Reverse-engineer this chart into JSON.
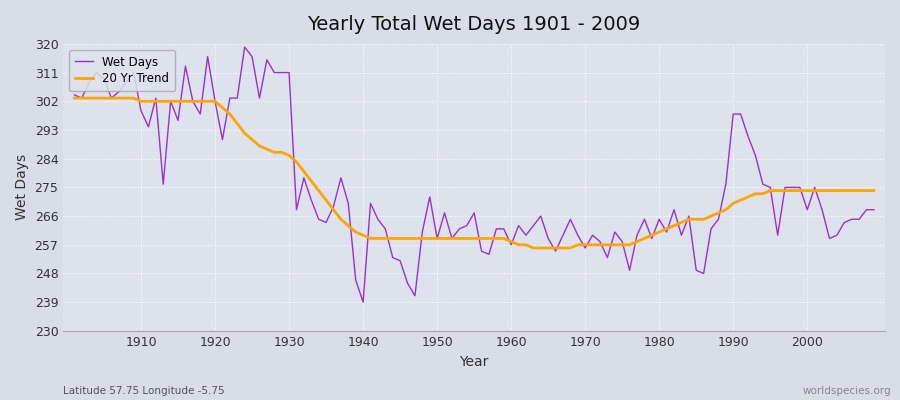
{
  "title": "Yearly Total Wet Days 1901 - 2009",
  "xlabel": "Year",
  "ylabel": "Wet Days",
  "subtitle": "Latitude 57.75 Longitude -5.75",
  "watermark": "worldspecies.org",
  "ylim": [
    230,
    320
  ],
  "yticks": [
    230,
    239,
    248,
    257,
    266,
    275,
    284,
    293,
    302,
    311,
    320
  ],
  "xticks": [
    1910,
    1920,
    1930,
    1940,
    1950,
    1960,
    1970,
    1980,
    1990,
    2000
  ],
  "bg_color": "#d8dde8",
  "plot_bg_color": "#dde2ec",
  "wet_days_color": "#9932CC",
  "trend_color": "#FFA500",
  "years": [
    1901,
    1902,
    1903,
    1904,
    1905,
    1906,
    1907,
    1908,
    1909,
    1910,
    1911,
    1912,
    1913,
    1914,
    1915,
    1916,
    1917,
    1918,
    1919,
    1920,
    1921,
    1922,
    1923,
    1924,
    1925,
    1926,
    1927,
    1928,
    1929,
    1930,
    1931,
    1932,
    1933,
    1934,
    1935,
    1936,
    1937,
    1938,
    1939,
    1940,
    1941,
    1942,
    1943,
    1944,
    1945,
    1946,
    1947,
    1948,
    1949,
    1950,
    1951,
    1952,
    1953,
    1954,
    1955,
    1956,
    1957,
    1958,
    1959,
    1960,
    1961,
    1962,
    1963,
    1964,
    1965,
    1966,
    1967,
    1968,
    1969,
    1970,
    1971,
    1972,
    1973,
    1974,
    1975,
    1976,
    1977,
    1978,
    1979,
    1980,
    1981,
    1982,
    1983,
    1984,
    1985,
    1986,
    1987,
    1988,
    1989,
    1990,
    1991,
    1992,
    1993,
    1994,
    1995,
    1996,
    1997,
    1998,
    1999,
    2000,
    2001,
    2002,
    2003,
    2004,
    2005,
    2006,
    2007,
    2008,
    2009
  ],
  "wet_days": [
    304,
    303,
    308,
    311,
    309,
    303,
    305,
    308,
    311,
    299,
    294,
    303,
    276,
    302,
    296,
    313,
    302,
    298,
    316,
    302,
    290,
    303,
    303,
    319,
    316,
    303,
    315,
    311,
    311,
    311,
    268,
    278,
    271,
    265,
    264,
    269,
    278,
    270,
    246,
    239,
    270,
    265,
    262,
    253,
    252,
    245,
    241,
    261,
    272,
    259,
    267,
    259,
    262,
    263,
    267,
    255,
    254,
    262,
    262,
    257,
    263,
    260,
    263,
    266,
    259,
    255,
    260,
    265,
    260,
    256,
    260,
    258,
    253,
    261,
    258,
    249,
    260,
    265,
    259,
    265,
    261,
    268,
    260,
    266,
    249,
    248,
    262,
    265,
    276,
    298,
    298,
    291,
    285,
    276,
    275,
    260,
    275,
    275,
    275,
    268,
    275,
    268,
    259,
    260,
    264,
    265,
    265,
    268,
    268
  ],
  "trend": [
    303,
    303,
    303,
    303,
    303,
    303,
    303,
    303,
    303,
    302,
    302,
    302,
    302,
    302,
    302,
    302,
    302,
    302,
    302,
    302,
    300,
    298,
    295,
    292,
    290,
    288,
    287,
    286,
    286,
    285,
    283,
    280,
    277,
    274,
    271,
    268,
    265,
    263,
    261,
    260,
    259,
    259,
    259,
    259,
    259,
    259,
    259,
    259,
    259,
    259,
    259,
    259,
    259,
    259,
    259,
    259,
    259,
    259,
    259,
    258,
    257,
    257,
    256,
    256,
    256,
    256,
    256,
    256,
    257,
    257,
    257,
    257,
    257,
    257,
    257,
    257,
    258,
    259,
    260,
    261,
    262,
    263,
    264,
    265,
    265,
    265,
    266,
    267,
    268,
    270,
    271,
    272,
    273,
    273,
    274,
    274,
    274,
    274,
    274,
    274,
    274,
    274,
    274,
    274,
    274,
    274,
    274,
    274,
    274
  ]
}
